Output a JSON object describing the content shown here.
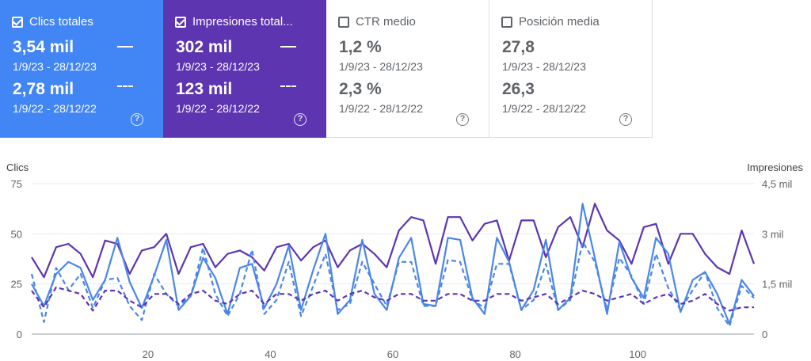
{
  "cards": [
    {
      "label": "Clics totales",
      "checked": true,
      "bg": "#4285f4",
      "value1": "3,54 mil",
      "date1": "1/9/23 - 28/12/23",
      "value2": "2,78 mil",
      "date2": "1/9/22 - 28/12/22",
      "help": "?"
    },
    {
      "label": "Impresiones total...",
      "checked": true,
      "bg": "#5e35b1",
      "value1": "302 mil",
      "date1": "1/9/23 - 28/12/23",
      "value2": "123 mil",
      "date2": "1/9/22 - 28/12/22",
      "help": "?"
    },
    {
      "label": "CTR medio",
      "checked": false,
      "value1": "1,2 %",
      "date1": "1/9/23 - 28/12/23",
      "value2": "2,3 %",
      "date2": "1/9/22 - 28/12/22",
      "help": "?"
    },
    {
      "label": "Posición media",
      "checked": false,
      "value1": "27,8",
      "date1": "1/9/23 - 28/12/23",
      "value2": "26,3",
      "date2": "1/9/22 - 28/12/22",
      "help": "?"
    }
  ],
  "chart_data": {
    "type": "line",
    "left_axis_title": "Clics",
    "right_axis_title": "Impresiones",
    "left_ticks": [
      "0",
      "25",
      "50",
      "75"
    ],
    "left_tick_values": [
      0,
      25,
      50,
      75
    ],
    "right_ticks": [
      "0",
      "1,5 mil",
      "3 mil",
      "4,5 mil"
    ],
    "right_tick_values": [
      0,
      1500,
      3000,
      4500
    ],
    "x_ticks": [
      20,
      40,
      60,
      80,
      100
    ],
    "xlim": [
      1,
      119
    ],
    "ylim_left": [
      0,
      75
    ],
    "ylim_right": [
      0,
      4500
    ],
    "grid": true,
    "series": [
      {
        "name": "Impresiones total...",
        "axis": "right",
        "dashed": false,
        "color": "#5e35b1",
        "x": [
          1,
          3,
          5,
          7,
          9,
          11,
          13,
          15,
          17,
          19,
          21,
          23,
          25,
          27,
          29,
          31,
          33,
          35,
          37,
          39,
          41,
          43,
          45,
          47,
          49,
          51,
          53,
          55,
          57,
          59,
          61,
          63,
          65,
          67,
          69,
          71,
          73,
          75,
          77,
          79,
          81,
          83,
          85,
          87,
          89,
          91,
          93,
          95,
          97,
          99,
          101,
          103,
          105,
          107,
          109,
          111,
          113,
          115,
          117,
          119
        ],
        "y": [
          2300,
          1700,
          2600,
          2700,
          2400,
          1700,
          2800,
          2700,
          1800,
          2500,
          2600,
          3000,
          1800,
          2600,
          2700,
          2000,
          2400,
          2500,
          2300,
          1900,
          2600,
          2700,
          2200,
          2600,
          2800,
          2000,
          2500,
          2700,
          2400,
          2000,
          3100,
          3500,
          3400,
          2100,
          3500,
          3500,
          2800,
          3300,
          3400,
          2200,
          3400,
          3400,
          2300,
          3200,
          3500,
          2600,
          3900,
          3100,
          2800,
          2100,
          3200,
          3300,
          2100,
          3000,
          3000,
          2400,
          2000,
          1800,
          3100,
          2100
        ]
      },
      {
        "name": "Clics totales",
        "axis": "left",
        "dashed": false,
        "color": "#4a86e8",
        "x": [
          1,
          3,
          5,
          7,
          9,
          11,
          13,
          15,
          17,
          19,
          21,
          23,
          25,
          27,
          29,
          31,
          33,
          35,
          37,
          39,
          41,
          43,
          45,
          47,
          49,
          51,
          53,
          55,
          57,
          59,
          61,
          63,
          65,
          67,
          69,
          71,
          73,
          75,
          77,
          79,
          81,
          83,
          85,
          87,
          89,
          91,
          93,
          95,
          97,
          99,
          101,
          103,
          105,
          107,
          109,
          111,
          113,
          115,
          117,
          119
        ],
        "y": [
          25,
          14,
          30,
          36,
          33,
          17,
          27,
          48,
          26,
          13,
          29,
          47,
          12,
          19,
          38,
          28,
          10,
          33,
          35,
          13,
          25,
          44,
          12,
          32,
          50,
          10,
          17,
          47,
          20,
          12,
          38,
          48,
          15,
          14,
          48,
          47,
          18,
          10,
          48,
          36,
          12,
          22,
          47,
          12,
          18,
          65,
          38,
          10,
          46,
          28,
          18,
          48,
          40,
          11,
          27,
          31,
          20,
          5,
          27,
          19
        ]
      },
      {
        "name": "2,78 mil",
        "axis": "left",
        "dashed": true,
        "color": "#4a86e8",
        "x": [
          1,
          3,
          5,
          7,
          9,
          11,
          13,
          15,
          17,
          19,
          21,
          23,
          25,
          27,
          29,
          31,
          33,
          35,
          37,
          39,
          41,
          43,
          45,
          47,
          49,
          51,
          53,
          55,
          57,
          59,
          61,
          63,
          65,
          67,
          69,
          71,
          73,
          75,
          77,
          79,
          81,
          83,
          85,
          87,
          89,
          91,
          93,
          95,
          97,
          99,
          101,
          103,
          105,
          107,
          109,
          111,
          113,
          115,
          117,
          119
        ],
        "y": [
          30,
          6,
          33,
          22,
          30,
          13,
          27,
          28,
          14,
          7,
          30,
          20,
          14,
          19,
          43,
          20,
          9,
          20,
          42,
          10,
          17,
          36,
          9,
          24,
          40,
          12,
          15,
          36,
          25,
          14,
          36,
          36,
          14,
          14,
          37,
          36,
          17,
          13,
          35,
          35,
          12,
          17,
          35,
          12,
          17,
          46,
          36,
          12,
          38,
          29,
          15,
          40,
          23,
          12,
          22,
          31,
          13,
          4,
          24,
          18
        ]
      },
      {
        "name": "123 mil",
        "axis": "right",
        "dashed": true,
        "color": "#5e35b1",
        "x": [
          1,
          3,
          5,
          7,
          9,
          11,
          13,
          15,
          17,
          19,
          21,
          23,
          25,
          27,
          29,
          31,
          33,
          35,
          37,
          39,
          41,
          43,
          45,
          47,
          49,
          51,
          53,
          55,
          57,
          59,
          61,
          63,
          65,
          67,
          69,
          71,
          73,
          75,
          77,
          79,
          81,
          83,
          85,
          87,
          89,
          91,
          93,
          95,
          97,
          99,
          101,
          103,
          105,
          107,
          109,
          111,
          113,
          115,
          117,
          119
        ],
        "y": [
          1300,
          800,
          1400,
          1300,
          1200,
          700,
          1300,
          1300,
          1000,
          800,
          1200,
          1200,
          900,
          1200,
          1300,
          1000,
          900,
          1200,
          1300,
          900,
          1200,
          1200,
          1000,
          1200,
          1300,
          1000,
          1200,
          1300,
          1100,
          1000,
          1200,
          1200,
          1000,
          1000,
          1200,
          1200,
          1000,
          1000,
          1200,
          1200,
          1000,
          1100,
          1200,
          900,
          1100,
          1300,
          1200,
          1000,
          1100,
          1200,
          900,
          1100,
          1200,
          900,
          1000,
          1200,
          900,
          700,
          800,
          800
        ]
      }
    ]
  }
}
